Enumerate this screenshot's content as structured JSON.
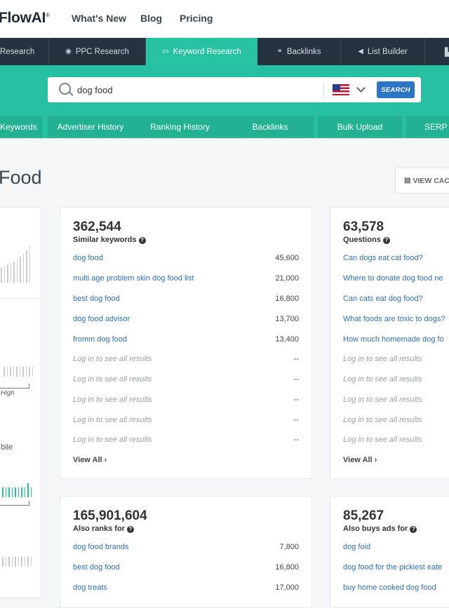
{
  "brand": {
    "logo_text": "FlowAI"
  },
  "top_nav": [
    "What's New",
    "Blog",
    "Pricing"
  ],
  "tabs": [
    {
      "label": "Research",
      "icon": "",
      "active": false
    },
    {
      "label": "PPC Research",
      "icon": "target-icon",
      "active": false
    },
    {
      "label": "Keyword Research",
      "icon": "keyboard-icon",
      "active": true
    },
    {
      "label": "Backlinks",
      "icon": "link-icon",
      "active": false
    },
    {
      "label": "List Builder",
      "icon": "megaphone-icon",
      "active": false
    }
  ],
  "search": {
    "value": "dog food",
    "button_label": "SEARCH",
    "country": "United States"
  },
  "subtabs": [
    "Keywords",
    "Advertiser History",
    "Ranking History",
    "Backlinks",
    "Bulk Upload",
    "SERP A"
  ],
  "page": {
    "title": "Food",
    "view_cache_label": "VIEW CAC"
  },
  "colors": {
    "accent": "#28c0a3",
    "nav_dark": "#26323f",
    "link": "#2d6fb8",
    "button": "#2d74c4"
  },
  "left_panel": {
    "label_high": "High",
    "label_mobile": "bile"
  },
  "cards": {
    "similar": {
      "count": "362,544",
      "label": "Similar keywords",
      "rows": [
        {
          "kw": "dog food",
          "vol": "45,600"
        },
        {
          "kw": "multi age problem skin dog food list",
          "vol": "21,000"
        },
        {
          "kw": "best dog food",
          "vol": "16,800"
        },
        {
          "kw": "dog food advisor",
          "vol": "13,700"
        },
        {
          "kw": "fromm dog food",
          "vol": "13,400"
        },
        {
          "kw": "Log in to see all results",
          "vol": "--"
        },
        {
          "kw": "Log in to see all results",
          "vol": "--"
        },
        {
          "kw": "Log in to see all results",
          "vol": "--"
        },
        {
          "kw": "Log in to see all results",
          "vol": "--"
        },
        {
          "kw": "Log in to see all results",
          "vol": "--"
        }
      ],
      "view_all": "View All"
    },
    "questions": {
      "count": "63,578",
      "label": "Questions",
      "rows": [
        {
          "kw": "Can dogs eat cat food?"
        },
        {
          "kw": "Where to donate dog food ne"
        },
        {
          "kw": "Can cats eat dog food?"
        },
        {
          "kw": "What foods are toxic to dogs?"
        },
        {
          "kw": "How much homemade dog fo"
        },
        {
          "kw": "Log in to see all results"
        },
        {
          "kw": "Log in to see all results"
        },
        {
          "kw": "Log in to see all results"
        },
        {
          "kw": "Log in to see all results"
        },
        {
          "kw": "Log in to see all results"
        }
      ],
      "view_all": "View All"
    },
    "also_ranks": {
      "count": "165,901,604",
      "label": "Also ranks for",
      "rows": [
        {
          "kw": "dog food brands",
          "vol": "7,800"
        },
        {
          "kw": "best dog food",
          "vol": "16,800"
        },
        {
          "kw": "dog treats",
          "vol": "17,000"
        }
      ]
    },
    "also_buys": {
      "count": "85,267",
      "label": "Also buys ads for",
      "rows": [
        {
          "kw": "dog foid"
        },
        {
          "kw": "dog food for the pickiest eate"
        },
        {
          "kw": "buy home cooked dog food"
        }
      ]
    }
  }
}
